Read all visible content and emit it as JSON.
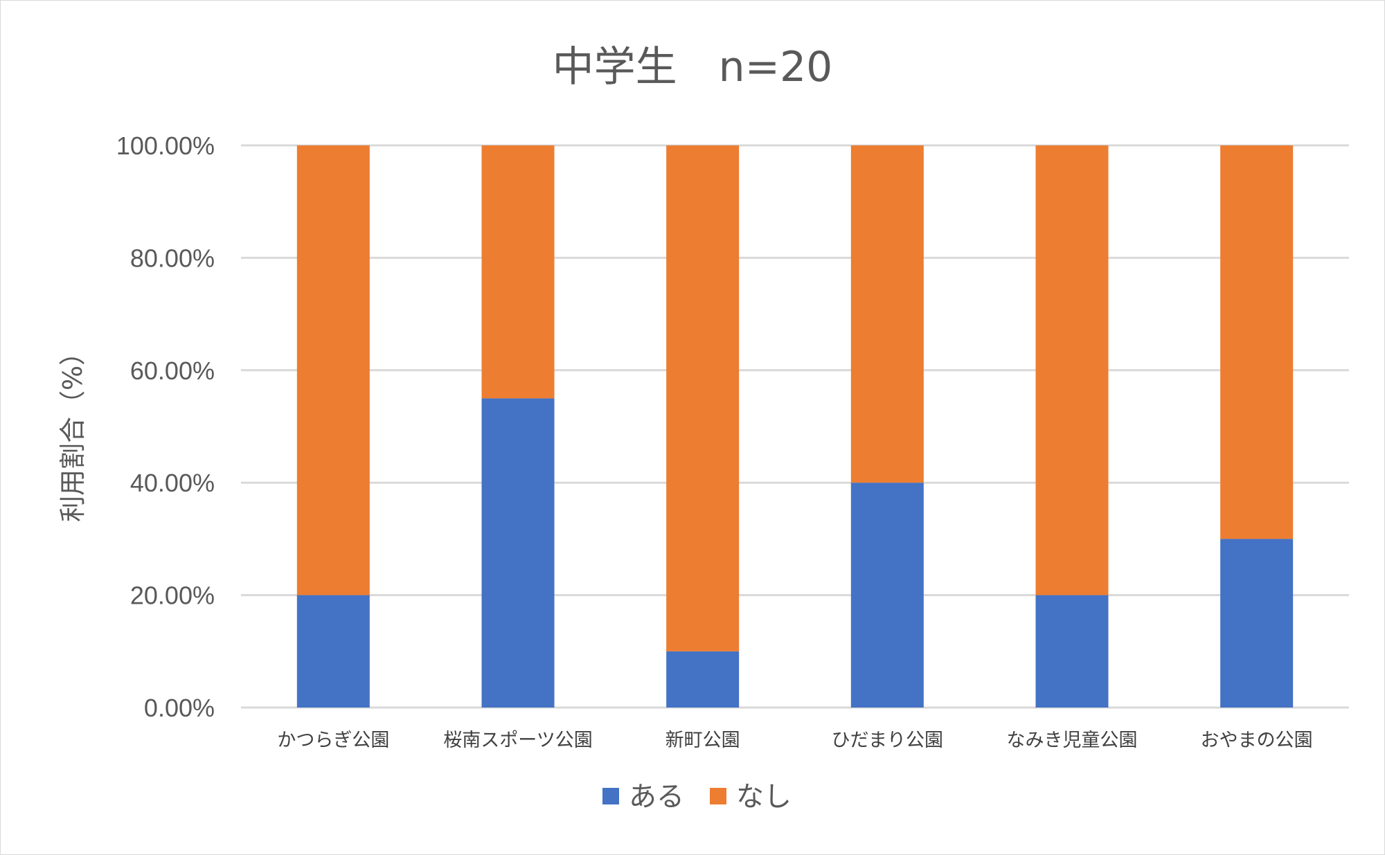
{
  "chart_data": {
    "type": "bar",
    "stacked": true,
    "title": "中学生　n=20",
    "xlabel": "",
    "ylabel": "利用割合（%）",
    "ylim": [
      0,
      1
    ],
    "yticks": [
      "0.00%",
      "20.00%",
      "40.00%",
      "60.00%",
      "80.00%",
      "100.00%"
    ],
    "grid": true,
    "legend_position": "bottom",
    "categories": [
      "かつらぎ公園",
      "桜南スポーツ公園",
      "新町公園",
      "ひだまり公園",
      "なみき児童公園",
      "おやまの公園"
    ],
    "series": [
      {
        "name": "ある",
        "color": "#4472C4",
        "values": [
          0.2,
          0.55,
          0.1,
          0.4,
          0.2,
          0.3
        ]
      },
      {
        "name": "なし",
        "color": "#ED7D31",
        "values": [
          0.8,
          0.45,
          0.9,
          0.6,
          0.8,
          0.7
        ]
      }
    ],
    "gridline_color": "#d9d9d9"
  }
}
